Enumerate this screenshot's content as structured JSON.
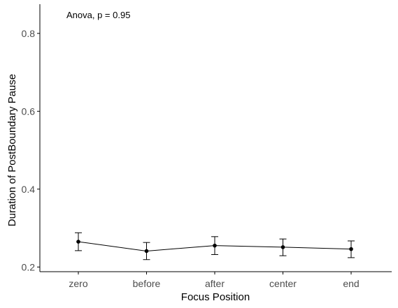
{
  "chart_data": {
    "type": "line",
    "xlabel": "Focus Position",
    "ylabel": "Duration of PostBoundary Pause",
    "annotation": "Anova, p = 0.95",
    "categories": [
      "zero",
      "before",
      "after",
      "center",
      "end"
    ],
    "values": [
      0.265,
      0.241,
      0.255,
      0.251,
      0.246
    ],
    "error_low": [
      0.242,
      0.219,
      0.232,
      0.229,
      0.224
    ],
    "error_high": [
      0.288,
      0.263,
      0.278,
      0.272,
      0.267
    ],
    "y_ticks": [
      0.2,
      0.4,
      0.6,
      0.8
    ],
    "y_tick_labels": [
      "0.2",
      "0.4",
      "0.6",
      "0.8"
    ],
    "ylim": [
      0.188,
      0.875
    ],
    "grid": false,
    "legend": "none",
    "colors": {
      "line": "#000000",
      "point": "#000000",
      "axis": "#000000",
      "tick_text": "#4d4d4d"
    }
  }
}
